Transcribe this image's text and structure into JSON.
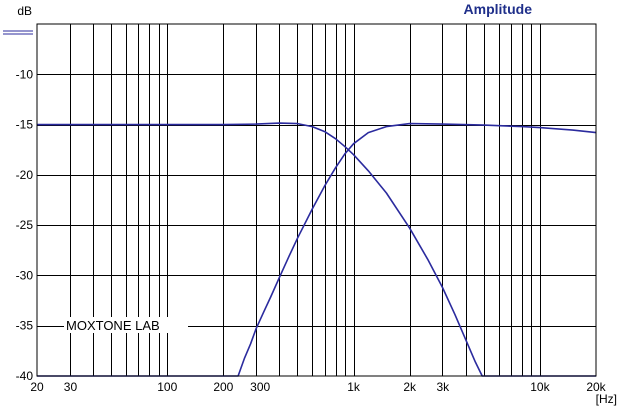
{
  "chart_data": {
    "type": "line",
    "title": "Amplitude",
    "ylabel": "dB",
    "xlabel": "[Hz]",
    "x_scale": "log",
    "xlim": [
      20,
      20000
    ],
    "ylim": [
      -40,
      -5
    ],
    "grid": true,
    "legend": "none",
    "x_tick_labels": [
      {
        "value": 20,
        "label": "20"
      },
      {
        "value": 30,
        "label": "30"
      },
      {
        "value": 100,
        "label": "100"
      },
      {
        "value": 200,
        "label": "200"
      },
      {
        "value": 300,
        "label": "300"
      },
      {
        "value": 1000,
        "label": "1k"
      },
      {
        "value": 2000,
        "label": "2k"
      },
      {
        "value": 3000,
        "label": "3k"
      },
      {
        "value": 10000,
        "label": "10k"
      },
      {
        "value": 20000,
        "label": "20k"
      }
    ],
    "y_tick_labels": [
      {
        "value": -10,
        "label": "-10"
      },
      {
        "value": -15,
        "label": "-15"
      },
      {
        "value": -20,
        "label": "-20"
      },
      {
        "value": -25,
        "label": "-25"
      },
      {
        "value": -30,
        "label": "-30"
      },
      {
        "value": -35,
        "label": "-35"
      },
      {
        "value": -40,
        "label": "-40"
      }
    ],
    "annotation": "MOXTONE LAB",
    "colors": {
      "grid": "#000000",
      "curve": "#2b2b9e",
      "title": "#1f2f8a",
      "marker": "#2b2b9e"
    },
    "series": [
      {
        "x": [
          20,
          50,
          100,
          200,
          300,
          400,
          500,
          600,
          700,
          800,
          900,
          1000,
          1200,
          1500,
          2000,
          2500,
          3000,
          3500,
          4000,
          4500,
          4900,
          5500,
          10000,
          20000
        ],
        "y": [
          -15,
          -15,
          -15,
          -15,
          -14.95,
          -14.85,
          -14.9,
          -15.2,
          -15.7,
          -16.4,
          -17.2,
          -18,
          -19.6,
          -21.8,
          -25.3,
          -28.4,
          -31.2,
          -33.9,
          -36.4,
          -38.6,
          -40,
          -40,
          -40,
          -40
        ]
      },
      {
        "x": [
          20,
          50,
          100,
          200,
          240,
          260,
          280,
          300,
          330,
          360,
          400,
          450,
          500,
          600,
          700,
          800,
          900,
          1000,
          1200,
          1500,
          2000,
          3000,
          5000,
          8000,
          10000,
          15000,
          20000
        ],
        "y": [
          -40,
          -40,
          -40,
          -40,
          -40,
          -38.2,
          -36.8,
          -35.3,
          -33.6,
          -32.1,
          -30.2,
          -28.1,
          -26.3,
          -23.4,
          -21.1,
          -19.3,
          -17.9,
          -16.9,
          -15.8,
          -15.2,
          -14.9,
          -14.95,
          -15.05,
          -15.2,
          -15.3,
          -15.55,
          -15.8
        ]
      }
    ]
  }
}
